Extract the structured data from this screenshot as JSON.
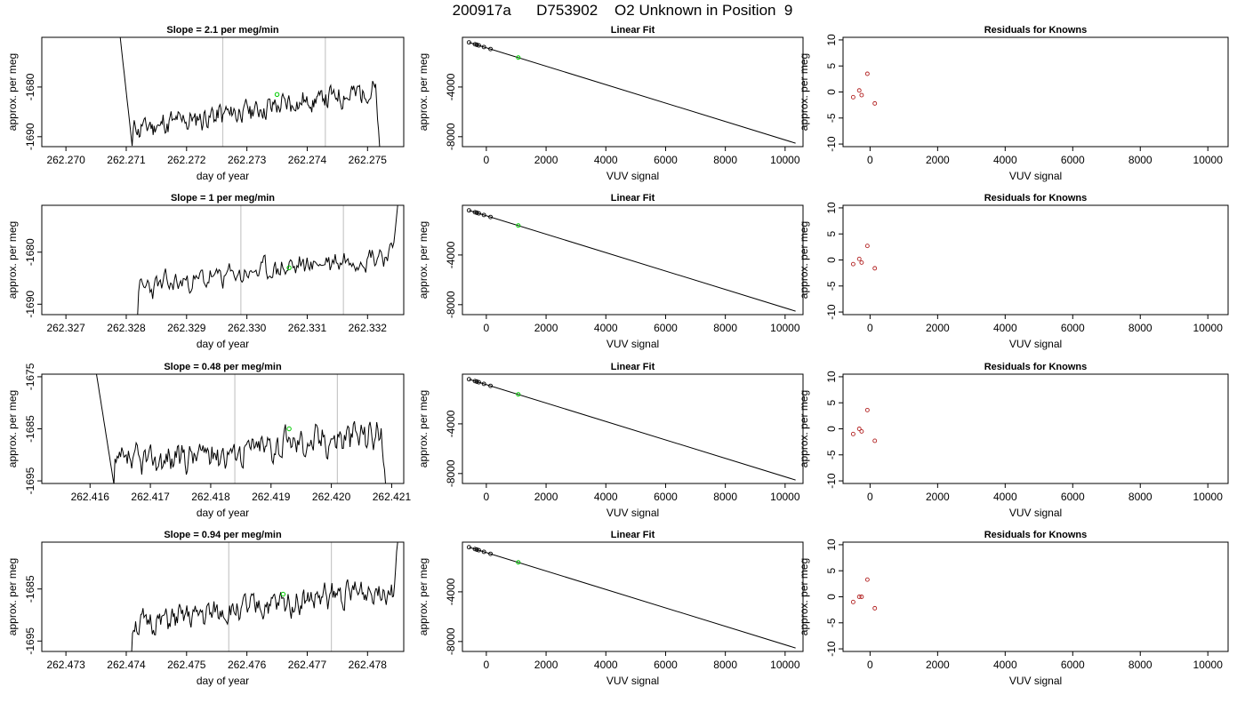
{
  "main_title": "200917a      D753902    O2 Unknown in Position  9",
  "chart_data": [
    {
      "type": "line",
      "row": 1,
      "panel": "time-series",
      "title": "Slope =  2.1  per meg/min",
      "xlabel": "day of year",
      "ylabel": "approx. per meg",
      "xlim": [
        262.2696,
        262.2756
      ],
      "ylim": [
        -1692,
        -1670
      ],
      "xticks": [
        262.27,
        262.271,
        262.272,
        262.273,
        262.274,
        262.275
      ],
      "xtick_labels": [
        "262.270",
        "262.271",
        "262.272",
        "262.273",
        "262.274",
        "262.275"
      ],
      "yticks": [
        -1690,
        -1680
      ],
      "ytick_labels": [
        "-1690",
        "-1680"
      ],
      "vlines": [
        262.2726,
        262.2743
      ],
      "marker": {
        "x": 262.2735,
        "y": -1681.5,
        "color": "#00cc00"
      },
      "curve": {
        "x0": 262.2709,
        "x1": 262.2752,
        "start": -1670,
        "dip": -1692,
        "dip_x": 262.2711,
        "base": -1688.5,
        "end_level": -1680.5,
        "noise": 1.3,
        "seed": 11,
        "tail": -1692
      }
    },
    {
      "type": "line",
      "row": 1,
      "panel": "linear-fit",
      "title": "Linear Fit",
      "xlabel": "VUV signal",
      "ylabel": "approx. per meg",
      "xlim": [
        -800,
        10600
      ],
      "ylim": [
        -8800,
        0
      ],
      "xticks": [
        0,
        2000,
        4000,
        6000,
        8000,
        10000
      ],
      "xtick_labels": [
        "0",
        "2000",
        "4000",
        "6000",
        "8000",
        "10000"
      ],
      "yticks": [
        -8000,
        -4000
      ],
      "ytick_labels": [
        "-8000",
        "-4000"
      ],
      "line": {
        "x": [
          -580,
          10350
        ],
        "y": [
          -410,
          -8520
        ]
      },
      "knowns": {
        "x": [
          -580,
          -380,
          -320,
          -250,
          -80,
          140
        ],
        "y": [
          -410,
          -560,
          -600,
          -650,
          -780,
          -940
        ]
      },
      "unknown": {
        "x": 1070,
        "y": -1630
      }
    },
    {
      "type": "scatter",
      "row": 1,
      "panel": "residuals",
      "title": "Residuals for Knowns",
      "xlabel": "VUV signal",
      "ylabel": "approx. per meg",
      "xlim": [
        -800,
        10600
      ],
      "ylim": [
        -10.5,
        10.5
      ],
      "xticks": [
        0,
        2000,
        4000,
        6000,
        8000,
        10000
      ],
      "xtick_labels": [
        "0",
        "2000",
        "4000",
        "6000",
        "8000",
        "10000"
      ],
      "yticks": [
        -10,
        -5,
        0,
        5,
        10
      ],
      "ytick_labels": [
        "-10",
        "-5",
        "0",
        "5",
        "10"
      ],
      "x": [
        -500,
        -320,
        -250,
        -80,
        140
      ],
      "y": [
        -1.0,
        0.3,
        -0.6,
        3.5,
        -2.2
      ]
    },
    {
      "type": "line",
      "row": 2,
      "panel": "time-series",
      "title": "Slope =  1  per meg/min",
      "xlabel": "day of year",
      "ylabel": "approx. per meg",
      "xlim": [
        262.3266,
        262.3326
      ],
      "ylim": [
        -1692,
        -1671
      ],
      "xticks": [
        262.327,
        262.328,
        262.329,
        262.33,
        262.331,
        262.332
      ],
      "xtick_labels": [
        "262.327",
        "262.328",
        "262.329",
        "262.330",
        "262.331",
        "262.332"
      ],
      "yticks": [
        -1690,
        -1680
      ],
      "ytick_labels": [
        "-1690",
        "-1680"
      ],
      "vlines": [
        262.3299,
        262.3316
      ],
      "marker": {
        "x": 262.3307,
        "y": -1683,
        "color": "#00cc00"
      },
      "curve": {
        "x0": 262.327,
        "x1": 262.3325,
        "start": -1693,
        "dip": -1693,
        "dip_x": 262.3282,
        "base": -1687,
        "end_level": -1680,
        "noise": 1.2,
        "seed": 23,
        "tail": -1671
      }
    },
    {
      "type": "line",
      "row": 2,
      "panel": "linear-fit",
      "title": "Linear Fit",
      "xlabel": "VUV signal",
      "ylabel": "approx. per meg",
      "xlim": [
        -800,
        10600
      ],
      "ylim": [
        -8800,
        0
      ],
      "xticks": [
        0,
        2000,
        4000,
        6000,
        8000,
        10000
      ],
      "xtick_labels": [
        "0",
        "2000",
        "4000",
        "6000",
        "8000",
        "10000"
      ],
      "yticks": [
        -8000,
        -4000
      ],
      "ytick_labels": [
        "-8000",
        "-4000"
      ],
      "line": {
        "x": [
          -580,
          10350
        ],
        "y": [
          -410,
          -8520
        ]
      },
      "knowns": {
        "x": [
          -580,
          -380,
          -320,
          -250,
          -80,
          140
        ],
        "y": [
          -410,
          -560,
          -600,
          -650,
          -780,
          -940
        ]
      },
      "unknown": {
        "x": 1070,
        "y": -1630
      }
    },
    {
      "type": "scatter",
      "row": 2,
      "panel": "residuals",
      "title": "Residuals for Knowns",
      "xlabel": "VUV signal",
      "ylabel": "approx. per meg",
      "xlim": [
        -800,
        10600
      ],
      "ylim": [
        -10.5,
        10.5
      ],
      "xticks": [
        0,
        2000,
        4000,
        6000,
        8000,
        10000
      ],
      "xtick_labels": [
        "0",
        "2000",
        "4000",
        "6000",
        "8000",
        "10000"
      ],
      "yticks": [
        -10,
        -5,
        0,
        5,
        10
      ],
      "ytick_labels": [
        "-10",
        "-5",
        "0",
        "5",
        "10"
      ],
      "x": [
        -500,
        -320,
        -250,
        -80,
        140
      ],
      "y": [
        -0.8,
        0.2,
        -0.5,
        2.7,
        -1.6
      ]
    },
    {
      "type": "line",
      "row": 3,
      "panel": "time-series",
      "title": "Slope =  0.48  per meg/min",
      "xlabel": "day of year",
      "ylabel": "approx. per meg",
      "xlim": [
        262.4152,
        262.4212
      ],
      "ylim": [
        -1695.5,
        -1674.5
      ],
      "xticks": [
        262.416,
        262.417,
        262.418,
        262.419,
        262.42,
        262.421
      ],
      "xtick_labels": [
        "262.416",
        "262.417",
        "262.418",
        "262.419",
        "262.420",
        "262.421"
      ],
      "yticks": [
        -1695,
        -1685,
        -1675
      ],
      "ytick_labels": [
        "-1695",
        "-1685",
        "-1675"
      ],
      "vlines": [
        262.4184,
        262.4201
      ],
      "marker": {
        "x": 262.4193,
        "y": -1685,
        "color": "#00cc00"
      },
      "curve": {
        "x0": 262.4161,
        "x1": 262.4209,
        "start": -1674,
        "dip": -1696,
        "dip_x": 262.4164,
        "base": -1692,
        "end_level": -1685.5,
        "noise": 1.6,
        "seed": 37,
        "tail": -1696
      }
    },
    {
      "type": "line",
      "row": 3,
      "panel": "linear-fit",
      "title": "Linear Fit",
      "xlabel": "VUV signal",
      "ylabel": "approx. per meg",
      "xlim": [
        -800,
        10600
      ],
      "ylim": [
        -8800,
        0
      ],
      "xticks": [
        0,
        2000,
        4000,
        6000,
        8000,
        10000
      ],
      "xtick_labels": [
        "0",
        "2000",
        "4000",
        "6000",
        "8000",
        "10000"
      ],
      "yticks": [
        -8000,
        -4000
      ],
      "ytick_labels": [
        "-8000",
        "-4000"
      ],
      "line": {
        "x": [
          -580,
          10350
        ],
        "y": [
          -410,
          -8520
        ]
      },
      "knowns": {
        "x": [
          -580,
          -380,
          -320,
          -250,
          -80,
          140
        ],
        "y": [
          -410,
          -560,
          -600,
          -650,
          -780,
          -940
        ]
      },
      "unknown": {
        "x": 1070,
        "y": -1630
      }
    },
    {
      "type": "scatter",
      "row": 3,
      "panel": "residuals",
      "title": "Residuals for Knowns",
      "xlabel": "VUV signal",
      "ylabel": "approx. per meg",
      "xlim": [
        -800,
        10600
      ],
      "ylim": [
        -10.5,
        10.5
      ],
      "xticks": [
        0,
        2000,
        4000,
        6000,
        8000,
        10000
      ],
      "xtick_labels": [
        "0",
        "2000",
        "4000",
        "6000",
        "8000",
        "10000"
      ],
      "yticks": [
        -10,
        -5,
        0,
        5,
        10
      ],
      "ytick_labels": [
        "-10",
        "-5",
        "0",
        "5",
        "10"
      ],
      "x": [
        -500,
        -320,
        -250,
        -80,
        140
      ],
      "y": [
        -1.0,
        0.0,
        -0.5,
        3.6,
        -2.3
      ]
    },
    {
      "type": "line",
      "row": 4,
      "panel": "time-series",
      "title": "Slope =  0.94  per meg/min",
      "xlabel": "day of year",
      "ylabel": "approx. per meg",
      "xlim": [
        262.4726,
        262.4786
      ],
      "ylim": [
        -1697,
        -1676
      ],
      "xticks": [
        262.473,
        262.474,
        262.475,
        262.476,
        262.477,
        262.478
      ],
      "xtick_labels": [
        "262.473",
        "262.474",
        "262.475",
        "262.476",
        "262.477",
        "262.478"
      ],
      "yticks": [
        -1695,
        -1685
      ],
      "ytick_labels": [
        "-1695",
        "-1685"
      ],
      "vlines": [
        262.4757,
        262.4774
      ],
      "marker": {
        "x": 262.4766,
        "y": -1686,
        "color": "#00cc00"
      },
      "curve": {
        "x0": 262.474,
        "x1": 262.4785,
        "start": -1698,
        "dip": -1698,
        "dip_x": 262.4741,
        "base": -1692,
        "end_level": -1684.5,
        "noise": 1.3,
        "seed": 51,
        "tail": -1676
      }
    },
    {
      "type": "line",
      "row": 4,
      "panel": "linear-fit",
      "title": "Linear Fit",
      "xlabel": "VUV signal",
      "ylabel": "approx. per meg",
      "xlim": [
        -800,
        10600
      ],
      "ylim": [
        -8800,
        0
      ],
      "xticks": [
        0,
        2000,
        4000,
        6000,
        8000,
        10000
      ],
      "xtick_labels": [
        "0",
        "2000",
        "4000",
        "6000",
        "8000",
        "10000"
      ],
      "yticks": [
        -8000,
        -4000
      ],
      "ytick_labels": [
        "-8000",
        "-4000"
      ],
      "line": {
        "x": [
          -580,
          10350
        ],
        "y": [
          -410,
          -8520
        ]
      },
      "knowns": {
        "x": [
          -580,
          -380,
          -320,
          -250,
          -80,
          140
        ],
        "y": [
          -410,
          -560,
          -600,
          -650,
          -780,
          -940
        ]
      },
      "unknown": {
        "x": 1070,
        "y": -1630
      }
    },
    {
      "type": "scatter",
      "row": 4,
      "panel": "residuals",
      "title": "Residuals for Knowns",
      "xlabel": "VUV signal",
      "ylabel": "approx. per meg",
      "xlim": [
        -800,
        10600
      ],
      "ylim": [
        -10.5,
        10.5
      ],
      "xticks": [
        0,
        2000,
        4000,
        6000,
        8000,
        10000
      ],
      "xtick_labels": [
        "0",
        "2000",
        "4000",
        "6000",
        "8000",
        "10000"
      ],
      "yticks": [
        -10,
        -5,
        0,
        5,
        10
      ],
      "ytick_labels": [
        "-10",
        "-5",
        "0",
        "5",
        "10"
      ],
      "x": [
        -500,
        -320,
        -250,
        -80,
        140
      ],
      "y": [
        -1.0,
        0.0,
        0.0,
        3.3,
        -2.2
      ]
    }
  ],
  "colors": {
    "series_line": "#000000",
    "unknown_point": "#00cc00",
    "known_point": "#b22222",
    "vline": "#c8c8c8"
  }
}
